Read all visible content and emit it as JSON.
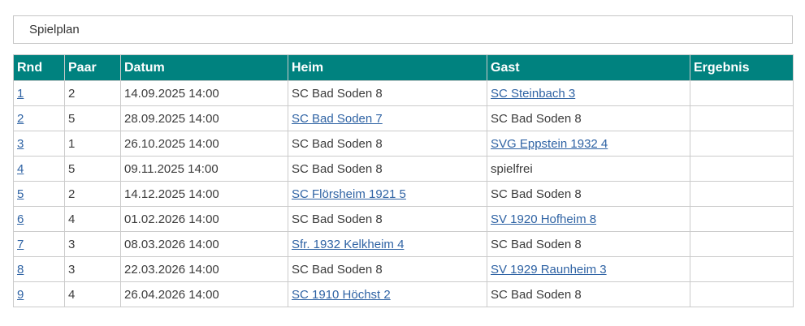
{
  "panel": {
    "title": "Spielplan"
  },
  "colors": {
    "header_bg": "#00827F",
    "header_text": "#FFFFFF",
    "link": "#2F63A4",
    "body_text": "#3B3B3B",
    "border": "#CBCBCB"
  },
  "table": {
    "columns": [
      {
        "label": "Rnd"
      },
      {
        "label": "Paar"
      },
      {
        "label": "Datum"
      },
      {
        "label": "Heim"
      },
      {
        "label": "Gast"
      },
      {
        "label": "Ergebnis"
      }
    ],
    "rows": [
      {
        "rnd": "1",
        "paar": "2",
        "datum": "14.09.2025 14:00",
        "heim": "SC Bad Soden 8",
        "heim_is_link": false,
        "gast": "SC Steinbach 3",
        "gast_is_link": true,
        "ergebnis": ""
      },
      {
        "rnd": "2",
        "paar": "5",
        "datum": "28.09.2025 14:00",
        "heim": "SC Bad Soden 7",
        "heim_is_link": true,
        "gast": "SC Bad Soden 8",
        "gast_is_link": false,
        "ergebnis": ""
      },
      {
        "rnd": "3",
        "paar": "1",
        "datum": "26.10.2025 14:00",
        "heim": "SC Bad Soden 8",
        "heim_is_link": false,
        "gast": "SVG Eppstein 1932 4",
        "gast_is_link": true,
        "ergebnis": ""
      },
      {
        "rnd": "4",
        "paar": "5",
        "datum": "09.11.2025 14:00",
        "heim": "SC Bad Soden 8",
        "heim_is_link": false,
        "gast": "spielfrei",
        "gast_is_link": false,
        "ergebnis": ""
      },
      {
        "rnd": "5",
        "paar": "2",
        "datum": "14.12.2025 14:00",
        "heim": "SC Flörsheim 1921 5",
        "heim_is_link": true,
        "gast": "SC Bad Soden 8",
        "gast_is_link": false,
        "ergebnis": ""
      },
      {
        "rnd": "6",
        "paar": "4",
        "datum": "01.02.2026 14:00",
        "heim": "SC Bad Soden 8",
        "heim_is_link": false,
        "gast": "SV 1920 Hofheim 8",
        "gast_is_link": true,
        "ergebnis": ""
      },
      {
        "rnd": "7",
        "paar": "3",
        "datum": "08.03.2026 14:00",
        "heim": "Sfr. 1932 Kelkheim 4",
        "heim_is_link": true,
        "gast": "SC Bad Soden 8",
        "gast_is_link": false,
        "ergebnis": ""
      },
      {
        "rnd": "8",
        "paar": "3",
        "datum": "22.03.2026 14:00",
        "heim": "SC Bad Soden 8",
        "heim_is_link": false,
        "gast": "SV 1929 Raunheim 3",
        "gast_is_link": true,
        "ergebnis": ""
      },
      {
        "rnd": "9",
        "paar": "4",
        "datum": "26.04.2026 14:00",
        "heim": "SC 1910 Höchst 2",
        "heim_is_link": true,
        "gast": "SC Bad Soden 8",
        "gast_is_link": false,
        "ergebnis": ""
      }
    ]
  }
}
